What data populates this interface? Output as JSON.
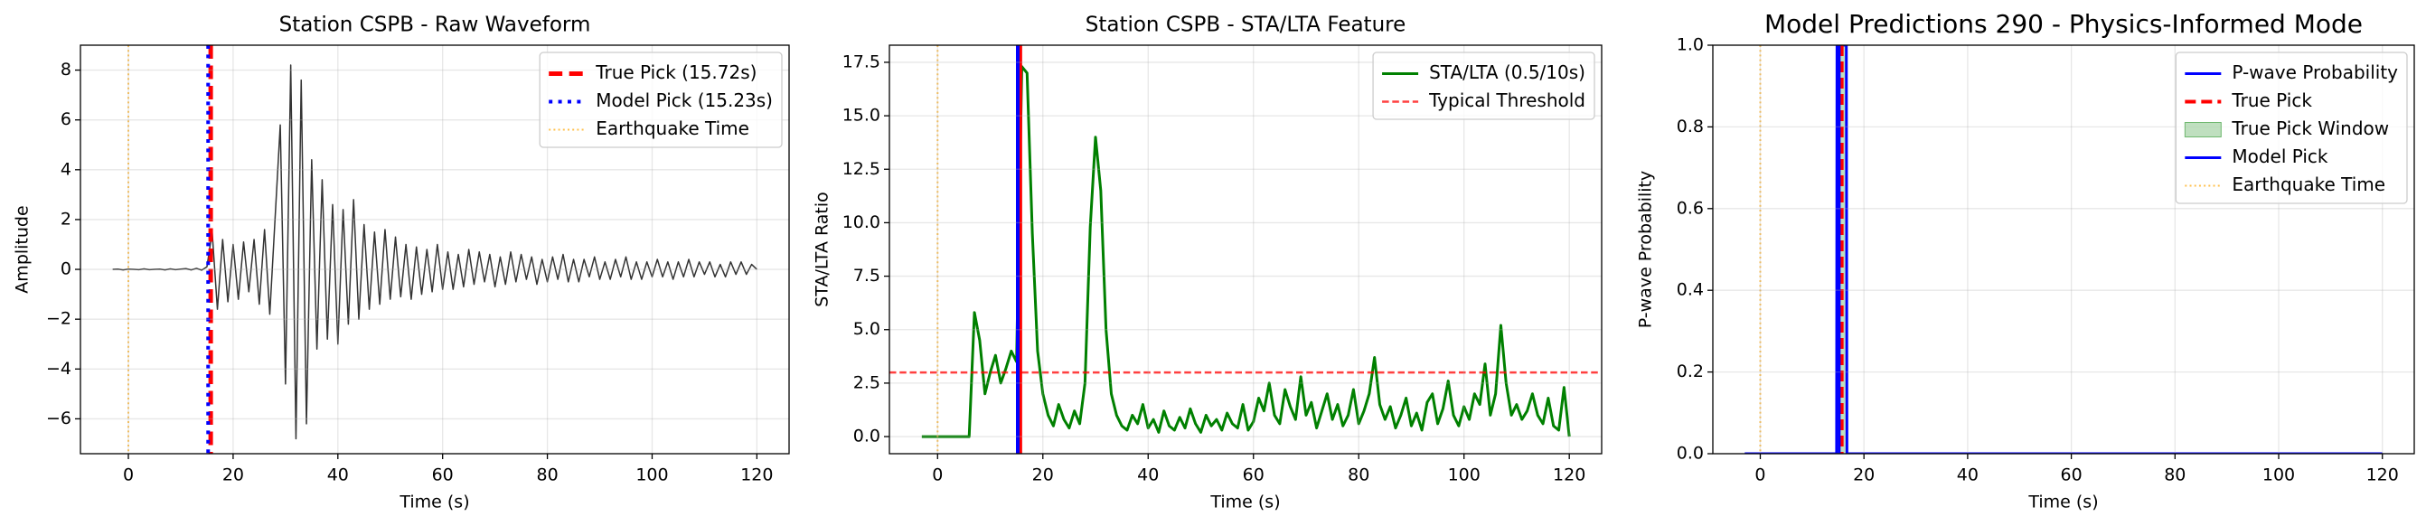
{
  "chart_data": [
    {
      "type": "line",
      "title": "Station CSPB - Raw Waveform",
      "xlabel": "Time (s)",
      "ylabel": "Amplitude",
      "xlim": [
        -9.15,
        126.15
      ],
      "xticks": [
        0,
        20,
        40,
        60,
        80,
        100,
        120
      ],
      "ylim": [
        -7.4,
        9.0
      ],
      "yticks": [
        {
          "value": -6,
          "label": "−6"
        },
        {
          "value": -4,
          "label": "−4"
        },
        {
          "value": -2,
          "label": "−2"
        },
        0,
        2,
        4,
        6,
        8
      ],
      "grid": true,
      "legend": "upper right",
      "x": [
        -3,
        -2,
        -1,
        0,
        1,
        2,
        3,
        4,
        5,
        6,
        7,
        8,
        9,
        10,
        11,
        12,
        13,
        14,
        15,
        16,
        17,
        18,
        19,
        20,
        21,
        22,
        23,
        24,
        25,
        26,
        27,
        28,
        29,
        30,
        31,
        32,
        33,
        34,
        35,
        36,
        37,
        38,
        39,
        40,
        41,
        42,
        43,
        44,
        45,
        46,
        47,
        48,
        49,
        50,
        51,
        52,
        53,
        54,
        55,
        56,
        57,
        58,
        59,
        60,
        61,
        62,
        63,
        64,
        65,
        66,
        67,
        68,
        69,
        70,
        71,
        72,
        73,
        74,
        75,
        76,
        77,
        78,
        79,
        80,
        81,
        82,
        83,
        84,
        85,
        86,
        87,
        88,
        89,
        90,
        91,
        92,
        93,
        94,
        95,
        96,
        97,
        98,
        99,
        100,
        101,
        102,
        103,
        104,
        105,
        106,
        107,
        108,
        109,
        110,
        111,
        112,
        113,
        114,
        115,
        116,
        117,
        118,
        119,
        120
      ],
      "series": [
        {
          "color": "#333333",
          "width": 1.5,
          "style": "solid",
          "values": [
            0,
            0.01,
            -0.02,
            0.01,
            0,
            -0.01,
            0.02,
            -0.01,
            0,
            0.01,
            -0.02,
            0.02,
            -0.01,
            0.01,
            0.03,
            -0.02,
            0.04,
            -0.03,
            0.1,
            1.5,
            -1.6,
            1.2,
            -1.3,
            1.0,
            -1.2,
            1.1,
            -0.9,
            1.2,
            -1.4,
            1.6,
            -1.8,
            2.0,
            5.8,
            -4.6,
            8.2,
            -6.8,
            7.6,
            -6.2,
            4.4,
            -3.2,
            3.6,
            -2.8,
            2.6,
            -3.0,
            2.4,
            -2.2,
            2.8,
            -2.0,
            1.8,
            -1.6,
            1.5,
            -1.4,
            1.6,
            -1.2,
            1.3,
            -1.1,
            1.0,
            -1.2,
            0.9,
            -1.0,
            0.8,
            -0.9,
            1.0,
            -0.8,
            0.7,
            -0.8,
            0.6,
            -0.7,
            0.8,
            -0.6,
            0.7,
            -0.5,
            0.6,
            -0.7,
            0.5,
            -0.6,
            0.7,
            -0.5,
            0.6,
            -0.4,
            0.5,
            -0.6,
            0.4,
            -0.5,
            0.5,
            -0.4,
            0.6,
            -0.5,
            0.4,
            -0.5,
            0.4,
            -0.3,
            0.5,
            -0.4,
            0.3,
            -0.4,
            0.4,
            -0.3,
            0.5,
            -0.4,
            0.3,
            -0.4,
            0.3,
            -0.3,
            0.4,
            -0.3,
            0.3,
            -0.4,
            0.3,
            -0.3,
            0.4,
            -0.3,
            0.3,
            -0.2,
            0.3,
            -0.3,
            0.2,
            -0.3,
            0.3,
            -0.2,
            0.3,
            -0.2,
            0.2,
            0
          ]
        }
      ],
      "overlays": [
        {
          "kind": "vline",
          "name": "True Pick (15.72s)",
          "x": 15.72,
          "color": "#ff0000",
          "style": "dashed",
          "width": 5
        },
        {
          "kind": "vline",
          "name": "Model Pick (15.23s)",
          "x": 15.23,
          "color": "#0000ff",
          "style": "dotted",
          "width": 4
        },
        {
          "kind": "vline",
          "name": "Earthquake Time",
          "x": 0,
          "color": "#ffa500",
          "style": "dotted",
          "width": 2,
          "opacity": 0.7
        }
      ]
    },
    {
      "type": "line",
      "title": "Station CSPB - STA/LTA Feature",
      "xlabel": "Time (s)",
      "ylabel": "STA/LTA Ratio",
      "xlim": [
        -9.15,
        126.15
      ],
      "xticks": [
        0,
        20,
        40,
        60,
        80,
        100,
        120
      ],
      "ylim": [
        -0.8,
        18.3
      ],
      "yticks": [
        {
          "value": 0,
          "label": "0.0"
        },
        2.5,
        {
          "value": 5,
          "label": "5.0"
        },
        7.5,
        {
          "value": 10,
          "label": "10.0"
        },
        12.5,
        {
          "value": 15,
          "label": "15.0"
        },
        17.5
      ],
      "grid": true,
      "legend": "upper right",
      "x": [
        -3,
        -2,
        -1,
        0,
        1,
        2,
        3,
        4,
        5,
        6,
        7,
        8,
        9,
        10,
        11,
        12,
        13,
        14,
        15,
        16,
        17,
        18,
        19,
        20,
        21,
        22,
        23,
        24,
        25,
        26,
        27,
        28,
        29,
        30,
        31,
        32,
        33,
        34,
        35,
        36,
        37,
        38,
        39,
        40,
        41,
        42,
        43,
        44,
        45,
        46,
        47,
        48,
        49,
        50,
        51,
        52,
        53,
        54,
        55,
        56,
        57,
        58,
        59,
        60,
        61,
        62,
        63,
        64,
        65,
        66,
        67,
        68,
        69,
        70,
        71,
        72,
        73,
        74,
        75,
        76,
        77,
        78,
        79,
        80,
        81,
        82,
        83,
        84,
        85,
        86,
        87,
        88,
        89,
        90,
        91,
        92,
        93,
        94,
        95,
        96,
        97,
        98,
        99,
        100,
        101,
        102,
        103,
        104,
        105,
        106,
        107,
        108,
        109,
        110,
        111,
        112,
        113,
        114,
        115,
        116,
        117,
        118,
        119,
        120
      ],
      "series": [
        {
          "name": "STA/LTA (0.5/10s)",
          "color": "#008000",
          "width": 3,
          "style": "solid",
          "values": [
            0,
            0,
            0,
            0,
            0,
            0,
            0,
            0,
            0,
            0,
            5.8,
            4.5,
            2.0,
            3.0,
            3.8,
            2.5,
            3.2,
            4.0,
            3.5,
            17.3,
            17.0,
            9.5,
            4.0,
            2.0,
            1.0,
            0.5,
            1.5,
            0.8,
            0.4,
            1.2,
            0.6,
            2.5,
            9.8,
            14.0,
            11.5,
            5.0,
            2.0,
            1.0,
            0.5,
            0.3,
            1.0,
            0.6,
            1.5,
            0.4,
            0.8,
            0.2,
            1.2,
            0.5,
            0.3,
            0.9,
            0.4,
            1.3,
            0.6,
            0.2,
            1.0,
            0.5,
            0.8,
            0.3,
            1.1,
            0.6,
            0.4,
            1.5,
            0.3,
            0.7,
            1.8,
            1.2,
            2.5,
            1.0,
            0.6,
            2.2,
            1.4,
            0.8,
            2.8,
            1.0,
            1.6,
            0.4,
            1.2,
            2.0,
            0.8,
            1.5,
            0.5,
            1.0,
            2.2,
            0.6,
            1.2,
            2.0,
            3.7,
            1.5,
            0.8,
            1.4,
            0.4,
            1.0,
            1.8,
            0.5,
            1.1,
            0.3,
            1.6,
            2.0,
            0.6,
            1.3,
            2.6,
            1.0,
            0.5,
            1.4,
            0.8,
            2.0,
            1.5,
            3.4,
            1.0,
            2.0,
            5.2,
            2.5,
            1.0,
            1.5,
            0.8,
            1.2,
            2.0,
            1.0,
            0.6,
            1.8,
            0.5,
            0.3,
            2.3,
            0.0
          ]
        }
      ],
      "overlays": [
        {
          "kind": "hline",
          "name": "Typical Threshold",
          "y": 3,
          "color": "#ff0000",
          "style": "dashed",
          "width": 2.5,
          "opacity": 0.75
        },
        {
          "kind": "vline",
          "x": 15.72,
          "color": "#ff0000",
          "style": "solid",
          "width": 4
        },
        {
          "kind": "vline",
          "x": 15.23,
          "color": "#0000ff",
          "style": "solid",
          "width": 4
        },
        {
          "kind": "vline",
          "x": 0,
          "color": "#ffa500",
          "style": "dotted",
          "width": 2,
          "opacity": 0.7
        }
      ]
    },
    {
      "type": "line",
      "title": "Model Predictions 290 - Physics-Informed Mode",
      "title_size": 28,
      "xlabel": "Time (s)",
      "ylabel": "P-wave Probability",
      "xlim": [
        -9.15,
        126.15
      ],
      "xticks": [
        0,
        20,
        40,
        60,
        80,
        100,
        120
      ],
      "ylim": [
        0,
        1
      ],
      "yticks": [
        {
          "value": 0,
          "label": "0.0"
        },
        0.2,
        0.4,
        0.6,
        0.8,
        {
          "value": 1,
          "label": "1.0"
        }
      ],
      "grid": true,
      "legend": "upper right",
      "x": [
        -3,
        14.72,
        14.8,
        16.6,
        16.72,
        120
      ],
      "series": [
        {
          "name": "P-wave Probability",
          "color": "#0000ff",
          "width": 3,
          "style": "solid",
          "values": [
            0,
            0,
            1,
            1,
            0,
            0
          ]
        }
      ],
      "overlays": [
        {
          "kind": "vline",
          "name": "True Pick",
          "x": 15.72,
          "color": "#ff0000",
          "style": "dashed",
          "width": 4
        },
        {
          "kind": "span",
          "name": "True Pick Window",
          "x": [
            14.72,
            16.72
          ],
          "color": "#008000",
          "opacity": 0.25
        },
        {
          "kind": "vline",
          "name": "Model Pick",
          "x": 15.23,
          "color": "#0000ff",
          "style": "solid",
          "width": 3
        },
        {
          "kind": "vline",
          "name": "Earthquake Time",
          "x": 0,
          "color": "#ffa500",
          "style": "dotted",
          "width": 2,
          "opacity": 0.7
        }
      ]
    }
  ]
}
